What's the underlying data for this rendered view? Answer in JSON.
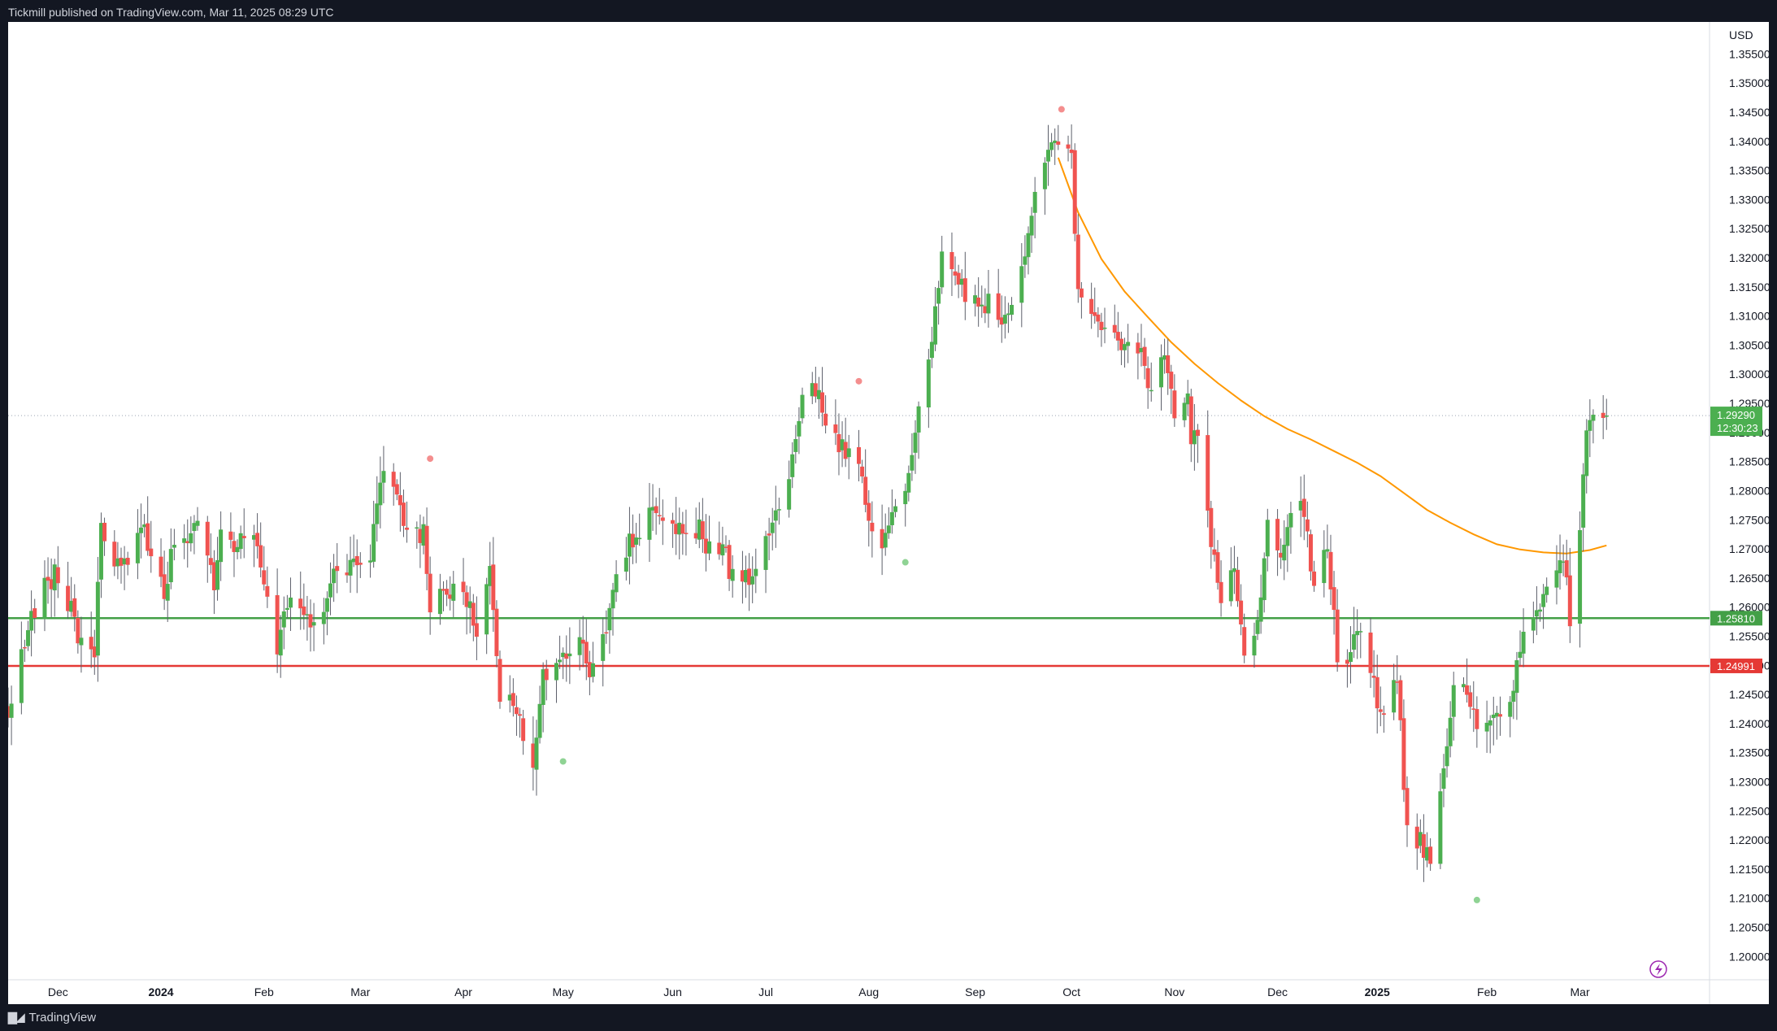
{
  "header": {
    "publisher": "Tickmill published on TradingView.com, Mar 11, 2025 08:29 UTC"
  },
  "footer": {
    "brand": "TradingView",
    "logo_icon": "tradingview-logo-icon"
  },
  "colors": {
    "up": "#4caf50",
    "down": "#f05350",
    "ma": "#ff9800",
    "support": "#43a047",
    "resistance": "#e53935",
    "price_line": "#9aa4b2",
    "current_tag": "#4caf50"
  },
  "chart_data": {
    "type": "candlestick",
    "currency": "USD",
    "ylim": [
      1.196,
      1.3605
    ],
    "y_ticks": [
      "1.20000",
      "1.20500",
      "1.21000",
      "1.21500",
      "1.22000",
      "1.22500",
      "1.23000",
      "1.23500",
      "1.24000",
      "1.24500",
      "1.25000",
      "1.25500",
      "1.26000",
      "1.26500",
      "1.27000",
      "1.27500",
      "1.28000",
      "1.28500",
      "1.29000",
      "1.29500",
      "1.30000",
      "1.30500",
      "1.31000",
      "1.31500",
      "1.32000",
      "1.32500",
      "1.33000",
      "1.33500",
      "1.34000",
      "1.34500",
      "1.35000",
      "1.35500"
    ],
    "x_ticks": [
      {
        "label": "Dec",
        "date": "2023-12-01",
        "bold": false
      },
      {
        "label": "2024",
        "date": "2024-01-01",
        "bold": true
      },
      {
        "label": "Feb",
        "date": "2024-02-01",
        "bold": false
      },
      {
        "label": "Mar",
        "date": "2024-03-01",
        "bold": false
      },
      {
        "label": "Apr",
        "date": "2024-04-01",
        "bold": false
      },
      {
        "label": "May",
        "date": "2024-05-01",
        "bold": false
      },
      {
        "label": "Jun",
        "date": "2024-06-03",
        "bold": false
      },
      {
        "label": "Jul",
        "date": "2024-07-01",
        "bold": false
      },
      {
        "label": "Aug",
        "date": "2024-08-01",
        "bold": false
      },
      {
        "label": "Sep",
        "date": "2024-09-02",
        "bold": false
      },
      {
        "label": "Oct",
        "date": "2024-10-01",
        "bold": false
      },
      {
        "label": "Nov",
        "date": "2024-11-01",
        "bold": false
      },
      {
        "label": "Dec",
        "date": "2024-12-02",
        "bold": false
      },
      {
        "label": "2025",
        "date": "2025-01-01",
        "bold": true
      },
      {
        "label": "Feb",
        "date": "2025-02-03",
        "bold": false
      },
      {
        "label": "Mar",
        "date": "2025-03-03",
        "bold": false
      }
    ],
    "x_range": [
      "2023-11-16",
      "2025-04-11"
    ],
    "candle_anchors": [
      [
        "2023-11-16",
        1.241
      ],
      [
        "2023-11-20",
        1.252
      ],
      [
        "2023-11-23",
        1.2585
      ],
      [
        "2023-11-28",
        1.2645
      ],
      [
        "2023-12-01",
        1.266
      ],
      [
        "2023-12-06",
        1.258
      ],
      [
        "2023-12-08",
        1.2535
      ],
      [
        "2023-12-12",
        1.252
      ],
      [
        "2023-12-14",
        1.275
      ],
      [
        "2023-12-18",
        1.268
      ],
      [
        "2023-12-22",
        1.269
      ],
      [
        "2023-12-27",
        1.2735
      ],
      [
        "2024-01-02",
        1.262
      ],
      [
        "2024-01-05",
        1.2715
      ],
      [
        "2024-01-09",
        1.2715
      ],
      [
        "2024-01-12",
        1.2755
      ],
      [
        "2024-01-17",
        1.263
      ],
      [
        "2024-01-19",
        1.272
      ],
      [
        "2024-01-24",
        1.271
      ],
      [
        "2024-01-29",
        1.2705
      ],
      [
        "2024-01-31",
        1.2685
      ],
      [
        "2024-02-05",
        1.2525
      ],
      [
        "2024-02-09",
        1.2625
      ],
      [
        "2024-02-14",
        1.2575
      ],
      [
        "2024-02-19",
        1.2595
      ],
      [
        "2024-02-23",
        1.2675
      ],
      [
        "2024-02-28",
        1.2665
      ],
      [
        "2024-03-04",
        1.2687
      ],
      [
        "2024-03-08",
        1.2845
      ],
      [
        "2024-03-11",
        1.2805
      ],
      [
        "2024-03-15",
        1.2742
      ],
      [
        "2024-03-20",
        1.2725
      ],
      [
        "2024-03-22",
        1.26
      ],
      [
        "2024-03-27",
        1.2635
      ],
      [
        "2024-04-01",
        1.2625
      ],
      [
        "2024-04-05",
        1.2565
      ],
      [
        "2024-04-09",
        1.2675
      ],
      [
        "2024-04-12",
        1.2455
      ],
      [
        "2024-04-16",
        1.2445
      ],
      [
        "2024-04-19",
        1.2375
      ],
      [
        "2024-04-22",
        1.233
      ],
      [
        "2024-04-25",
        1.2475
      ],
      [
        "2024-04-30",
        1.2525
      ],
      [
        "2024-05-03",
        1.252
      ],
      [
        "2024-05-07",
        1.255
      ],
      [
        "2024-05-09",
        1.2495
      ],
      [
        "2024-05-14",
        1.2555
      ],
      [
        "2024-05-17",
        1.2675
      ],
      [
        "2024-05-21",
        1.2712
      ],
      [
        "2024-05-24",
        1.2738
      ],
      [
        "2024-05-28",
        1.276
      ],
      [
        "2024-06-03",
        1.2745
      ],
      [
        "2024-06-07",
        1.2715
      ],
      [
        "2024-06-11",
        1.274
      ],
      [
        "2024-06-14",
        1.2695
      ],
      [
        "2024-06-18",
        1.2714
      ],
      [
        "2024-06-20",
        1.2662
      ],
      [
        "2024-06-25",
        1.2659
      ],
      [
        "2024-06-28",
        1.2648
      ],
      [
        "2024-07-03",
        1.2755
      ],
      [
        "2024-07-08",
        1.281
      ],
      [
        "2024-07-12",
        1.2965
      ],
      [
        "2024-07-16",
        1.2972
      ],
      [
        "2024-07-19",
        1.2915
      ],
      [
        "2024-07-23",
        1.288
      ],
      [
        "2024-07-26",
        1.2855
      ],
      [
        "2024-07-30",
        1.2835
      ],
      [
        "2024-08-01",
        1.274
      ],
      [
        "2024-08-05",
        1.269
      ],
      [
        "2024-08-08",
        1.2755
      ],
      [
        "2024-08-13",
        1.2825
      ],
      [
        "2024-08-16",
        1.2945
      ],
      [
        "2024-08-20",
        1.306
      ],
      [
        "2024-08-23",
        1.321
      ],
      [
        "2024-08-27",
        1.3186
      ],
      [
        "2024-08-30",
        1.3125
      ],
      [
        "2024-09-03",
        1.312
      ],
      [
        "2024-09-06",
        1.3125
      ],
      [
        "2024-09-10",
        1.3082
      ],
      [
        "2024-09-13",
        1.3128
      ],
      [
        "2024-09-17",
        1.319
      ],
      [
        "2024-09-20",
        1.3325
      ],
      [
        "2024-09-24",
        1.3391
      ],
      [
        "2024-09-26",
        1.3415
      ],
      [
        "2024-10-01",
        1.336
      ],
      [
        "2024-10-03",
        1.313
      ],
      [
        "2024-10-08",
        1.3108
      ],
      [
        "2024-10-11",
        1.307
      ],
      [
        "2024-10-15",
        1.3056
      ],
      [
        "2024-10-18",
        1.305
      ],
      [
        "2024-10-22",
        1.303
      ],
      [
        "2024-10-25",
        1.296
      ],
      [
        "2024-10-29",
        1.303
      ],
      [
        "2024-11-01",
        1.292
      ],
      [
        "2024-11-05",
        1.2975
      ],
      [
        "2024-11-06",
        1.2885
      ],
      [
        "2024-11-08",
        1.291
      ],
      [
        "2024-11-13",
        1.2672
      ],
      [
        "2024-11-15",
        1.2612
      ],
      [
        "2024-11-19",
        1.268
      ],
      [
        "2024-11-22",
        1.253
      ],
      [
        "2024-11-26",
        1.2572
      ],
      [
        "2024-11-29",
        1.2742
      ],
      [
        "2024-12-03",
        1.2675
      ],
      [
        "2024-12-06",
        1.276
      ],
      [
        "2024-12-10",
        1.2765
      ],
      [
        "2024-12-13",
        1.2632
      ],
      [
        "2024-12-17",
        1.2705
      ],
      [
        "2024-12-20",
        1.2525
      ],
      [
        "2024-12-24",
        1.2515
      ],
      [
        "2024-12-27",
        1.2575
      ],
      [
        "2025-01-02",
        1.242
      ],
      [
        "2025-01-07",
        1.2478
      ],
      [
        "2025-01-10",
        1.2213
      ],
      [
        "2025-01-14",
        1.2195
      ],
      [
        "2025-01-17",
        1.2173
      ],
      [
        "2025-01-21",
        1.233
      ],
      [
        "2025-01-24",
        1.2478
      ],
      [
        "2025-01-28",
        1.2448
      ],
      [
        "2025-01-31",
        1.2393
      ],
      [
        "2025-02-03",
        1.2398
      ],
      [
        "2025-02-07",
        1.2412
      ],
      [
        "2025-02-11",
        1.2453
      ],
      [
        "2025-02-14",
        1.2563
      ],
      [
        "2025-02-19",
        1.2578
      ],
      [
        "2025-02-21",
        1.2635
      ],
      [
        "2025-02-26",
        1.2692
      ],
      [
        "2025-02-28",
        1.258
      ],
      [
        "2025-03-03",
        1.2722
      ],
      [
        "2025-03-05",
        1.2897
      ],
      [
        "2025-03-07",
        1.292
      ],
      [
        "2025-03-11",
        1.2929
      ]
    ],
    "ma": {
      "color": "#ff9800",
      "points": [
        [
          "2024-09-27",
          1.3372
        ],
        [
          "2024-10-03",
          1.3278
        ],
        [
          "2024-10-10",
          1.3198
        ],
        [
          "2024-10-17",
          1.3142
        ],
        [
          "2024-10-24",
          1.3098
        ],
        [
          "2024-10-31",
          1.3055
        ],
        [
          "2024-11-07",
          1.3018
        ],
        [
          "2024-11-14",
          1.2985
        ],
        [
          "2024-11-21",
          1.2955
        ],
        [
          "2024-11-28",
          1.2928
        ],
        [
          "2024-12-05",
          1.2906
        ],
        [
          "2024-12-12",
          1.2888
        ],
        [
          "2024-12-19",
          1.2868
        ],
        [
          "2024-12-26",
          1.2848
        ],
        [
          "2025-01-02",
          1.2825
        ],
        [
          "2025-01-09",
          1.2796
        ],
        [
          "2025-01-16",
          1.2767
        ],
        [
          "2025-01-23",
          1.2745
        ],
        [
          "2025-01-30",
          1.2725
        ],
        [
          "2025-02-06",
          1.2708
        ],
        [
          "2025-02-13",
          1.2699
        ],
        [
          "2025-02-20",
          1.2694
        ],
        [
          "2025-02-27",
          1.2692
        ],
        [
          "2025-03-06",
          1.2698
        ],
        [
          "2025-03-11",
          1.2706
        ]
      ]
    },
    "levels": [
      {
        "name": "support",
        "value": 1.2581,
        "label": "1.25810",
        "color": "#43a047"
      },
      {
        "name": "resistance",
        "value": 1.24991,
        "label": "1.24991",
        "color": "#e53935"
      }
    ],
    "last_price": {
      "value": 1.2929,
      "label": "1.29290",
      "countdown": "12:30:23"
    },
    "markers": [
      {
        "date": "2024-03-22",
        "price": 1.2855,
        "kind": "pivot-high"
      },
      {
        "date": "2024-05-01",
        "price": 1.2335,
        "kind": "pivot-low"
      },
      {
        "date": "2024-07-29",
        "price": 1.2988,
        "kind": "pivot-high"
      },
      {
        "date": "2024-08-12",
        "price": 1.2677,
        "kind": "pivot-low"
      },
      {
        "date": "2024-09-28",
        "price": 1.3455,
        "kind": "pivot-high"
      },
      {
        "date": "2025-01-31",
        "price": 1.2097,
        "kind": "pivot-low"
      }
    ]
  }
}
